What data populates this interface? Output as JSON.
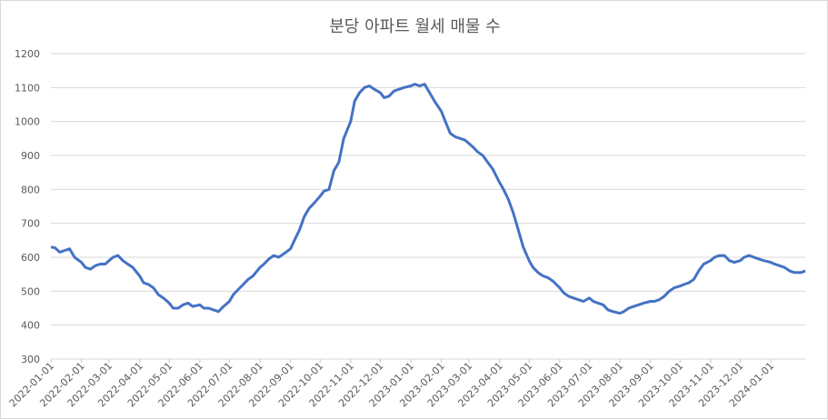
{
  "chart_data": {
    "type": "line",
    "title": "분당 아파트 월세 매물 수",
    "ylim": [
      300,
      1200
    ],
    "yticks": [
      300,
      400,
      500,
      600,
      700,
      800,
      900,
      1000,
      1100,
      1200
    ],
    "grid": true,
    "x_range": [
      "2022-01-01",
      "2024-02-05"
    ],
    "x_ticks": [
      "2022-01-01",
      "2022-02-01",
      "2022-03-01",
      "2022-04-01",
      "2022-05-01",
      "2022-06-01",
      "2022-07-01",
      "2022-08-01",
      "2022-09-01",
      "2022-10-01",
      "2022-11-01",
      "2022-12-01",
      "2023-01-01",
      "2023-02-01",
      "2023-03-01",
      "2023-04-01",
      "2023-05-01",
      "2023-06-01",
      "2023-07-01",
      "2023-08-01",
      "2023-09-01",
      "2023-10-01",
      "2023-11-01",
      "2023-12-01",
      "2024-01-01"
    ],
    "line_color": "#4472c4",
    "series": [
      {
        "x": [
          "2022-01-01",
          "2022-01-05",
          "2022-01-10",
          "2022-01-15",
          "2022-01-20",
          "2022-01-25",
          "2022-02-01",
          "2022-02-05",
          "2022-02-10",
          "2022-02-15",
          "2022-02-20",
          "2022-02-25",
          "2022-03-01",
          "2022-03-05",
          "2022-03-10",
          "2022-03-15",
          "2022-03-20",
          "2022-03-25",
          "2022-04-01",
          "2022-04-05",
          "2022-04-10",
          "2022-04-15",
          "2022-04-20",
          "2022-04-25",
          "2022-05-01",
          "2022-05-05",
          "2022-05-10",
          "2022-05-15",
          "2022-05-20",
          "2022-05-25",
          "2022-06-01",
          "2022-06-05",
          "2022-06-10",
          "2022-06-15",
          "2022-06-20",
          "2022-06-25",
          "2022-07-01",
          "2022-07-05",
          "2022-07-10",
          "2022-07-15",
          "2022-07-20",
          "2022-07-25",
          "2022-08-01",
          "2022-08-05",
          "2022-08-10",
          "2022-08-15",
          "2022-08-20",
          "2022-08-25",
          "2022-09-01",
          "2022-09-05",
          "2022-09-10",
          "2022-09-15",
          "2022-09-20",
          "2022-09-25",
          "2022-10-01",
          "2022-10-05",
          "2022-10-10",
          "2022-10-15",
          "2022-10-20",
          "2022-10-25",
          "2022-11-01",
          "2022-11-05",
          "2022-11-10",
          "2022-11-15",
          "2022-11-20",
          "2022-11-25",
          "2022-12-01",
          "2022-12-05",
          "2022-12-10",
          "2022-12-15",
          "2022-12-20",
          "2022-12-25",
          "2023-01-01",
          "2023-01-05",
          "2023-01-10",
          "2023-01-15",
          "2023-01-20",
          "2023-01-25",
          "2023-02-01",
          "2023-02-05",
          "2023-02-10",
          "2023-02-15",
          "2023-02-20",
          "2023-02-25",
          "2023-03-01",
          "2023-03-05",
          "2023-03-10",
          "2023-03-15",
          "2023-03-20",
          "2023-03-25",
          "2023-04-01",
          "2023-04-05",
          "2023-04-10",
          "2023-04-15",
          "2023-04-20",
          "2023-04-25",
          "2023-05-01",
          "2023-05-05",
          "2023-05-10",
          "2023-05-15",
          "2023-05-20",
          "2023-05-25",
          "2023-06-01",
          "2023-06-05",
          "2023-06-10",
          "2023-06-15",
          "2023-06-20",
          "2023-06-25",
          "2023-07-01",
          "2023-07-05",
          "2023-07-10",
          "2023-07-15",
          "2023-07-20",
          "2023-07-25",
          "2023-08-01",
          "2023-08-05",
          "2023-08-10",
          "2023-08-15",
          "2023-08-20",
          "2023-08-25",
          "2023-09-01",
          "2023-09-05",
          "2023-09-10",
          "2023-09-15",
          "2023-09-20",
          "2023-09-25",
          "2023-10-01",
          "2023-10-05",
          "2023-10-10",
          "2023-10-15",
          "2023-10-20",
          "2023-10-25",
          "2023-11-01",
          "2023-11-05",
          "2023-11-10",
          "2023-11-15",
          "2023-11-20",
          "2023-11-25",
          "2023-12-01",
          "2023-12-05",
          "2023-12-10",
          "2023-12-15",
          "2023-12-20",
          "2023-12-25",
          "2024-01-01",
          "2024-01-05",
          "2024-01-10",
          "2024-01-15",
          "2024-01-20",
          "2024-01-25",
          "2024-02-01",
          "2024-02-05"
        ],
        "y": [
          630,
          628,
          615,
          620,
          625,
          600,
          585,
          570,
          565,
          575,
          580,
          580,
          590,
          600,
          605,
          590,
          580,
          570,
          545,
          525,
          520,
          510,
          490,
          480,
          465,
          450,
          450,
          460,
          465,
          455,
          460,
          450,
          450,
          445,
          440,
          455,
          470,
          490,
          505,
          520,
          535,
          545,
          570,
          580,
          595,
          605,
          600,
          610,
          625,
          650,
          680,
          720,
          745,
          760,
          780,
          795,
          800,
          855,
          880,
          950,
          1000,
          1060,
          1085,
          1100,
          1105,
          1095,
          1085,
          1070,
          1075,
          1090,
          1095,
          1100,
          1105,
          1110,
          1105,
          1110,
          1085,
          1060,
          1030,
          1000,
          965,
          955,
          950,
          945,
          935,
          925,
          910,
          900,
          880,
          860,
          820,
          800,
          770,
          730,
          680,
          630,
          590,
          570,
          555,
          545,
          540,
          530,
          510,
          495,
          485,
          480,
          475,
          470,
          480,
          470,
          465,
          460,
          445,
          440,
          435,
          440,
          450,
          455,
          460,
          465,
          470,
          470,
          475,
          485,
          500,
          510,
          515,
          520,
          525,
          535,
          560,
          580,
          590,
          600,
          605,
          605,
          590,
          585,
          590,
          600,
          605,
          600,
          595,
          590,
          585,
          580,
          575,
          570,
          560,
          555,
          555,
          560
        ]
      }
    ]
  }
}
